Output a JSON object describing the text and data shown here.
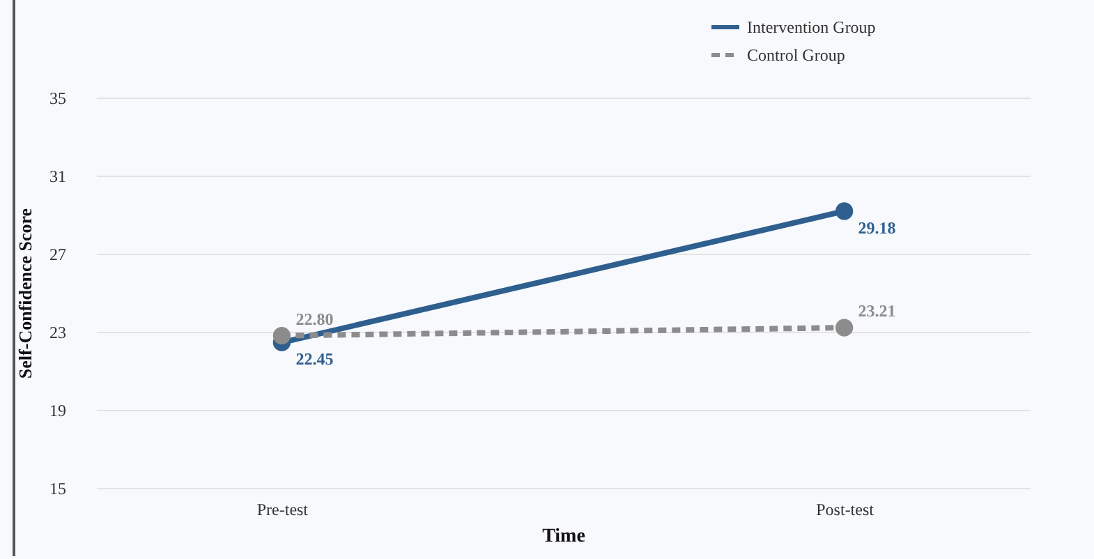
{
  "chart_data": {
    "type": "line",
    "xlabel": "Time",
    "ylabel": "Self-Confidence Score",
    "categories": [
      "Pre-test",
      "Post-test"
    ],
    "series": [
      {
        "name": "Intervention Group",
        "color": "#2e5f8f",
        "values": [
          22.45,
          29.18
        ],
        "line_style": "solid"
      },
      {
        "name": "Control Group",
        "color": "#8c8c8c",
        "values": [
          22.8,
          23.21
        ],
        "value_labels": [
          "22.80",
          "23.21"
        ],
        "line_style": "dashed"
      }
    ],
    "ylim": [
      15,
      35
    ],
    "yticks": [
      15,
      19,
      23,
      27,
      31,
      35
    ],
    "grid": "y",
    "legend": "top right",
    "marker": "circle",
    "data_labels": true
  }
}
